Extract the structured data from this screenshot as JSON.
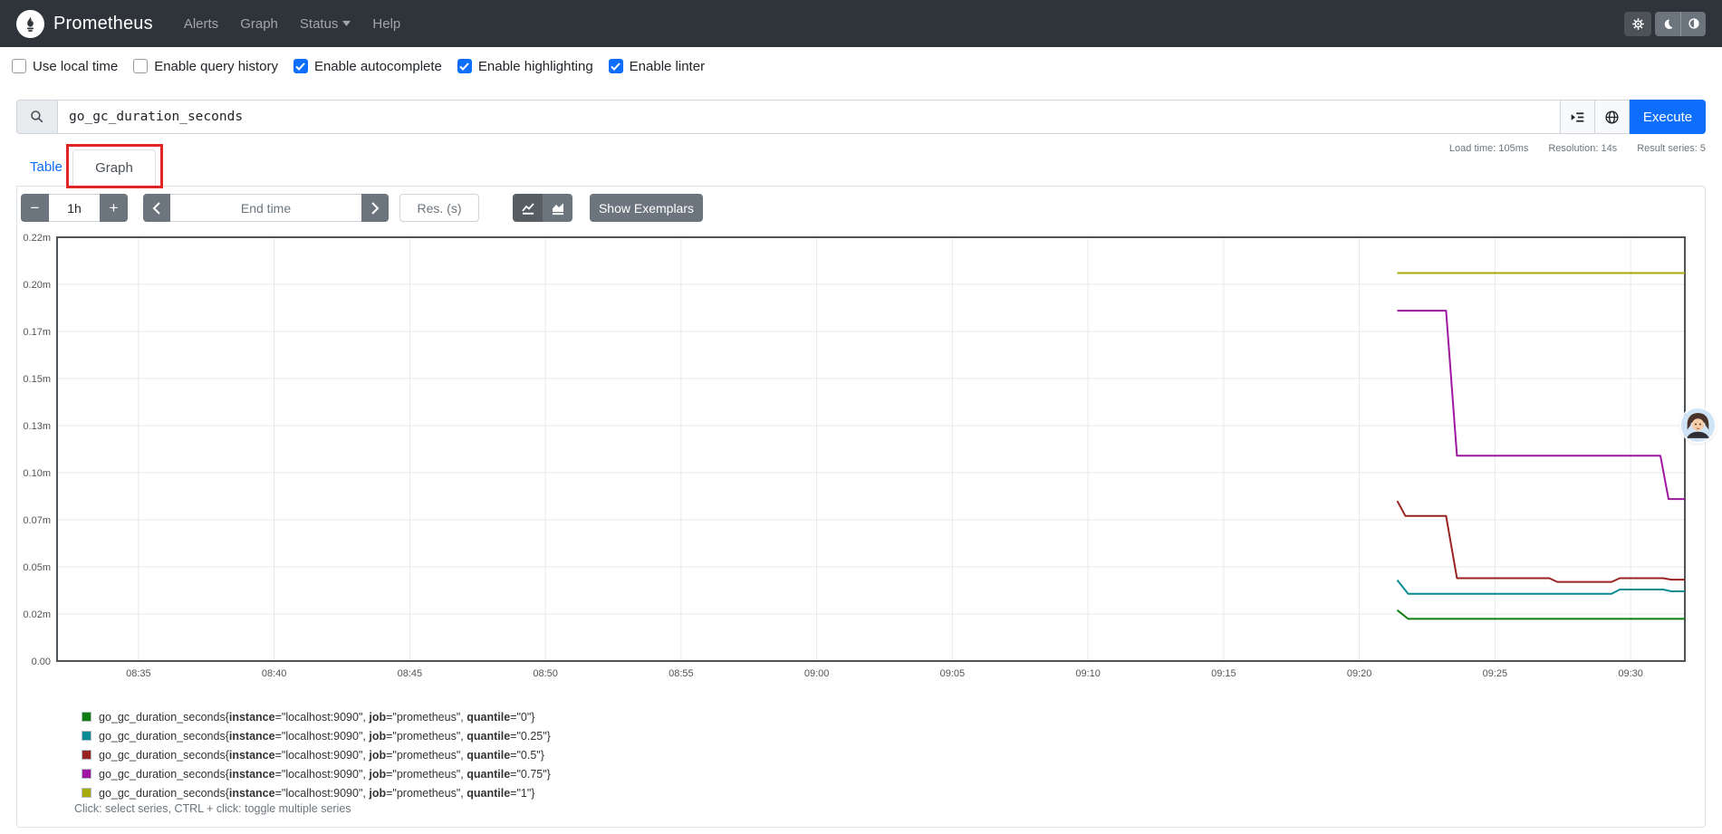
{
  "navbar": {
    "brand": "Prometheus",
    "items": [
      {
        "label": "Alerts"
      },
      {
        "label": "Graph"
      },
      {
        "label": "Status",
        "has_dropdown": true
      },
      {
        "label": "Help"
      }
    ]
  },
  "options": [
    {
      "label": "Use local time",
      "checked": false
    },
    {
      "label": "Enable query history",
      "checked": false
    },
    {
      "label": "Enable autocomplete",
      "checked": true
    },
    {
      "label": "Enable highlighting",
      "checked": true
    },
    {
      "label": "Enable linter",
      "checked": true
    }
  ],
  "query": {
    "value": "go_gc_duration_seconds",
    "execute_label": "Execute"
  },
  "stats": {
    "load_time": "Load time: 105ms",
    "resolution": "Resolution: 14s",
    "result_series": "Result series: 5"
  },
  "tabs": [
    {
      "label": "Table",
      "active": false
    },
    {
      "label": "Graph",
      "active": true,
      "annotated": true
    }
  ],
  "controls": {
    "decrease_label": "−",
    "range_value": "1h",
    "increase_label": "+",
    "end_time_placeholder": "End time",
    "res_placeholder": "Res. (s)",
    "show_exemplars_label": "Show Exemplars"
  },
  "chart_data": {
    "type": "line",
    "metric": "go_gc_duration_seconds",
    "grid": true,
    "legend_position": "bottom",
    "x_axis": {
      "min_minutes": 0,
      "max_minutes": 60,
      "start_time": "08:32",
      "end_time": "09:32",
      "ticks": [
        {
          "t": 3,
          "label": "08:35"
        },
        {
          "t": 8,
          "label": "08:40"
        },
        {
          "t": 13,
          "label": "08:45"
        },
        {
          "t": 18,
          "label": "08:50"
        },
        {
          "t": 23,
          "label": "08:55"
        },
        {
          "t": 28,
          "label": "09:00"
        },
        {
          "t": 33,
          "label": "09:05"
        },
        {
          "t": 38,
          "label": "09:10"
        },
        {
          "t": 43,
          "label": "09:15"
        },
        {
          "t": 48,
          "label": "09:20"
        },
        {
          "t": 53,
          "label": "09:25"
        },
        {
          "t": 58,
          "label": "09:30"
        }
      ]
    },
    "y_axis": {
      "min": 0,
      "max": 0.225,
      "unit_suffix": "m",
      "ticks": [
        {
          "v": 0,
          "label": "0.00"
        },
        {
          "v": 0.025,
          "label": "0.02m"
        },
        {
          "v": 0.05,
          "label": "0.05m"
        },
        {
          "v": 0.075,
          "label": "0.07m"
        },
        {
          "v": 0.1,
          "label": "0.10m"
        },
        {
          "v": 0.125,
          "label": "0.13m"
        },
        {
          "v": 0.15,
          "label": "0.15m"
        },
        {
          "v": 0.175,
          "label": "0.17m"
        },
        {
          "v": 0.2,
          "label": "0.20m"
        },
        {
          "v": 0.225,
          "label": "0.22m"
        }
      ]
    },
    "series": [
      {
        "labels": {
          "instance": "localhost:9090",
          "job": "prometheus",
          "quantile": "0"
        },
        "color": "#0f7d0f",
        "points": [
          [
            49.4,
            0.027
          ],
          [
            49.8,
            0.0224
          ],
          [
            60,
            0.0224
          ]
        ]
      },
      {
        "labels": {
          "instance": "localhost:9090",
          "job": "prometheus",
          "quantile": "0.25"
        },
        "color": "#0a8a93",
        "points": [
          [
            49.4,
            0.043
          ],
          [
            49.8,
            0.0357
          ],
          [
            57.3,
            0.0357
          ],
          [
            57.6,
            0.038
          ],
          [
            59.2,
            0.038
          ],
          [
            59.5,
            0.037
          ],
          [
            60,
            0.037
          ]
        ]
      },
      {
        "labels": {
          "instance": "localhost:9090",
          "job": "prometheus",
          "quantile": "0.5"
        },
        "color": "#992222",
        "points": [
          [
            49.4,
            0.085
          ],
          [
            49.7,
            0.077
          ],
          [
            51.2,
            0.077
          ],
          [
            51.6,
            0.044
          ],
          [
            55.0,
            0.044
          ],
          [
            55.3,
            0.042
          ],
          [
            57.3,
            0.042
          ],
          [
            57.6,
            0.044
          ],
          [
            59.2,
            0.044
          ],
          [
            59.5,
            0.0432
          ],
          [
            60,
            0.0432
          ]
        ]
      },
      {
        "labels": {
          "instance": "localhost:9090",
          "job": "prometheus",
          "quantile": "0.75"
        },
        "color": "#a016a0",
        "points": [
          [
            49.4,
            0.186
          ],
          [
            51.2,
            0.186
          ],
          [
            51.6,
            0.109
          ],
          [
            59.1,
            0.109
          ],
          [
            59.4,
            0.086
          ],
          [
            60,
            0.086
          ]
        ]
      },
      {
        "labels": {
          "instance": "localhost:9090",
          "job": "prometheus",
          "quantile": "1"
        },
        "color": "#a9a90c",
        "points": [
          [
            49.4,
            0.206
          ],
          [
            60,
            0.206
          ]
        ]
      }
    ]
  },
  "legend": {
    "hint": "Click: select series, CTRL + click: toggle multiple series"
  },
  "overlay": {
    "avatar_name": "webcam-avatar"
  }
}
